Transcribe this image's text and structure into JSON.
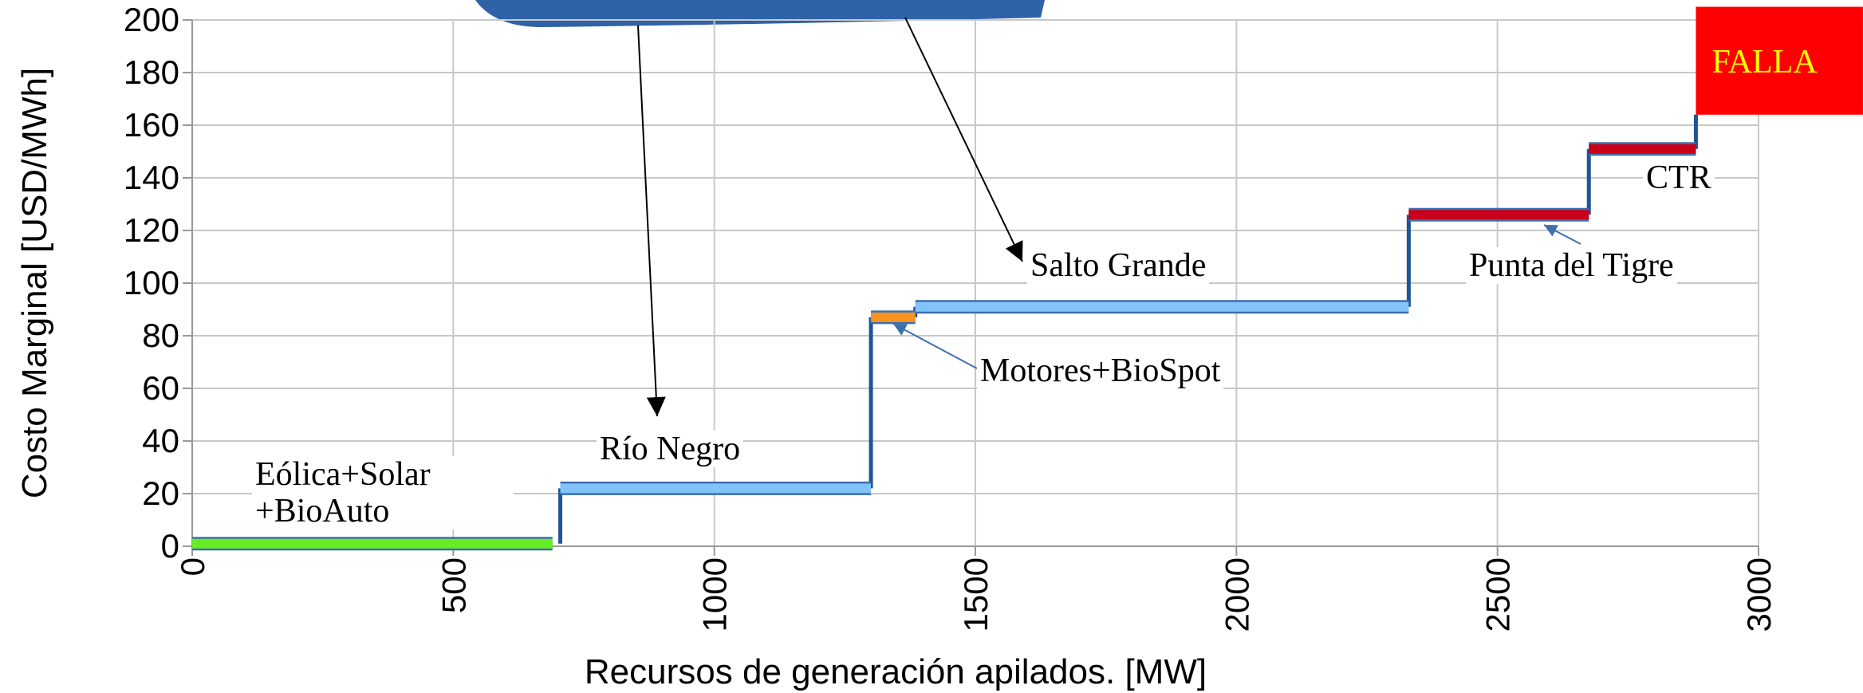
{
  "chart_data": {
    "type": "step",
    "xlabel": "Recursos de generación apilados. [MW]",
    "ylabel": "Costo Marginal [USD/MWh]",
    "xlim": [
      0,
      3000
    ],
    "xticks": [
      0,
      500,
      1000,
      1500,
      2000,
      2500,
      3000
    ],
    "ylim": [
      0,
      200
    ],
    "yticks": [
      0,
      20,
      40,
      60,
      80,
      100,
      120,
      140,
      160,
      180,
      200
    ],
    "grid": true,
    "step_color": "#1f5596",
    "series": [
      {
        "name": "Eólica+Solar +BioAuto",
        "color": "#66ee22",
        "x": [
          0,
          690
        ],
        "values": [
          1,
          1
        ]
      },
      {
        "name": "Río Negro",
        "color": "#82c3fa",
        "x": [
          705,
          1300
        ],
        "values": [
          22,
          22
        ]
      },
      {
        "name": "Motores+BioSpot",
        "color": "#f7931e",
        "x": [
          1300,
          1385
        ],
        "values": [
          87,
          87
        ]
      },
      {
        "name": "Salto Grande",
        "color": "#82c3fa",
        "x": [
          1385,
          2330
        ],
        "values": [
          91,
          91
        ]
      },
      {
        "name": "Punta del Tigre",
        "color": "#c8001a",
        "x": [
          2330,
          2675
        ],
        "values": [
          126,
          126
        ]
      },
      {
        "name": "CTR",
        "color": "#c8001a",
        "x": [
          2675,
          2880
        ],
        "values": [
          151,
          151
        ]
      }
    ],
    "falla": {
      "label": "FALLA",
      "color": "#ff0000",
      "text_color": "#ffff00",
      "x": [
        2880,
        3200
      ],
      "values": [
        164,
        205
      ]
    }
  }
}
